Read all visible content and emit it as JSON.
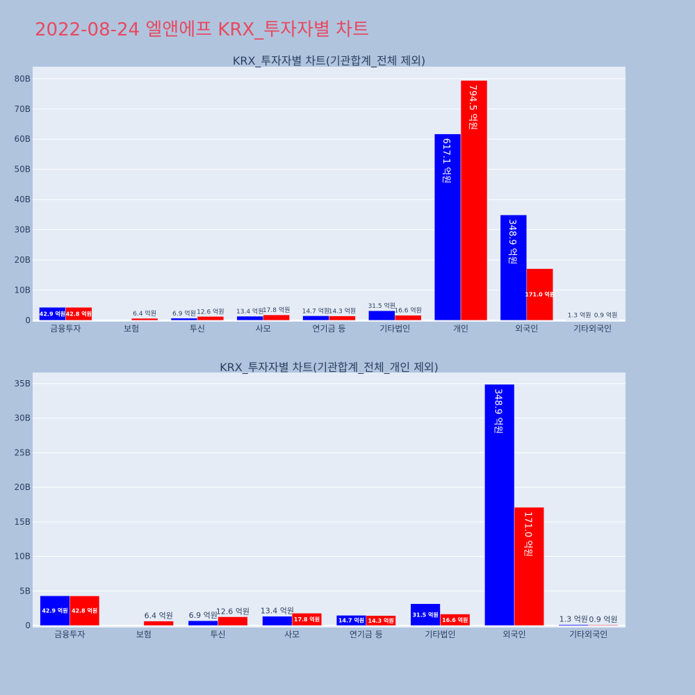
{
  "page_title": "2022-08-24 엘앤에프 KRX_투자자별 차트",
  "colors": {
    "buy": "#0000ff",
    "sell": "#ff0000",
    "plot_bg": "#e5ecf6",
    "grid": "#ffffff",
    "page_bg": "#b0c4de",
    "title": "#e8495f",
    "text": "#2a3f5f"
  },
  "chart_data": [
    {
      "type": "bar",
      "title": "KRX_투자자별 차트(기관합계_전체 제외)",
      "categories": [
        "금융투자",
        "보험",
        "투신",
        "사모",
        "연기금 등",
        "기타법인",
        "개인",
        "외국인",
        "기타외국인"
      ],
      "series": [
        {
          "values": [
            4.29,
            0,
            0.69,
            1.34,
            1.47,
            3.15,
            61.71,
            34.89,
            0.13
          ],
          "labels": [
            "42.9 억원",
            "",
            "6.9 억원",
            "13.4 억원",
            "14.7 억원",
            "31.5 억원",
            "617.1 억원",
            "348.9 억원",
            "1.3 억원"
          ]
        },
        {
          "values": [
            4.28,
            0.64,
            1.26,
            1.78,
            1.43,
            1.66,
            79.45,
            17.1,
            0.09
          ],
          "labels": [
            "42.8 억원",
            "6.4 억원",
            "12.6 억원",
            "17.8 억원",
            "14.3 억원",
            "16.6 억원",
            "794.5 억원",
            "171.0 억원",
            "0.9 억원"
          ]
        }
      ],
      "yticks": [
        0,
        10,
        20,
        30,
        40,
        50,
        60,
        70,
        80
      ],
      "ytick_labels": [
        "0",
        "10B",
        "20B",
        "30B",
        "40B",
        "50B",
        "60B",
        "70B",
        "80B"
      ],
      "ylim": [
        -0.5,
        84
      ],
      "grid": true
    },
    {
      "type": "bar",
      "title": "KRX_투자자별 차트(기관합계_전체_개인 제외)",
      "categories": [
        "금융투자",
        "보험",
        "투신",
        "사모",
        "연기금 등",
        "기타법인",
        "외국인",
        "기타외국인"
      ],
      "series": [
        {
          "values": [
            4.29,
            0,
            0.69,
            1.34,
            1.47,
            3.15,
            34.89,
            0.13
          ],
          "labels": [
            "42.9 억원",
            "",
            "6.9 억원",
            "13.4 억원",
            "14.7 억원",
            "31.5 억원",
            "348.9 억원",
            "1.3 억원"
          ]
        },
        {
          "values": [
            4.28,
            0.64,
            1.26,
            1.78,
            1.43,
            1.66,
            17.1,
            0.09
          ],
          "labels": [
            "42.8 억원",
            "6.4 억원",
            "12.6 억원",
            "17.8 억원",
            "14.3 억원",
            "16.6 억원",
            "171.0 억원",
            "0.9 억원"
          ]
        }
      ],
      "yticks": [
        0,
        5,
        10,
        15,
        20,
        25,
        30,
        35
      ],
      "ytick_labels": [
        "0",
        "5B",
        "10B",
        "15B",
        "20B",
        "25B",
        "30B",
        "35B"
      ],
      "ylim": [
        -0.3,
        36.6
      ],
      "grid": true
    }
  ]
}
